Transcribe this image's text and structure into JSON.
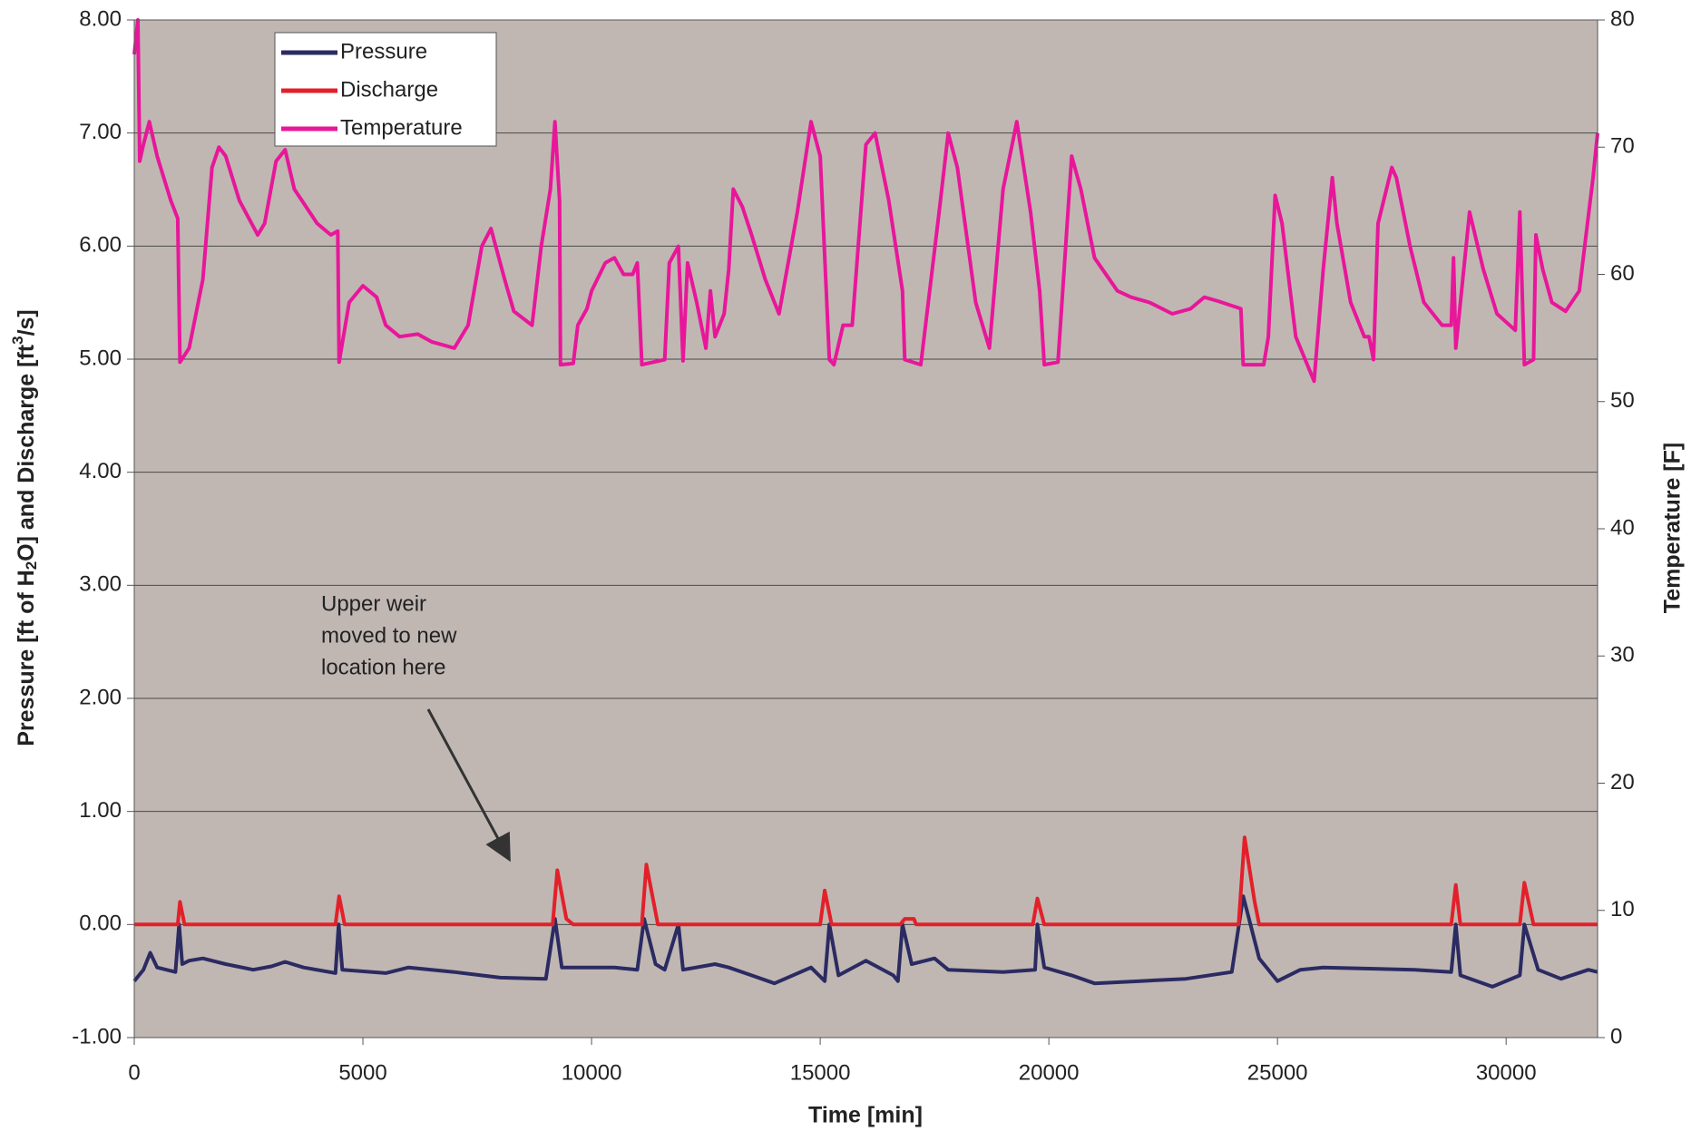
{
  "chart_data": {
    "type": "line",
    "xlabel": "Time [min]",
    "ylabel": [
      "Pressure [ft of H",
      "2",
      "O] and Discharge [ft",
      "3",
      "/s]"
    ],
    "y2label": "Temperature [F]",
    "annotation": [
      "Upper weir",
      "moved to new",
      "location here"
    ],
    "xlim": [
      0,
      32000
    ],
    "xticks": [
      0,
      5000,
      10000,
      15000,
      20000,
      25000,
      30000
    ],
    "ylim": [
      -1,
      8
    ],
    "yticks": [
      {
        "value": -1,
        "label": "-1.00"
      },
      {
        "value": 0,
        "label": "0.00"
      },
      {
        "value": 1,
        "label": "1.00"
      },
      {
        "value": 2,
        "label": "2.00"
      },
      {
        "value": 3,
        "label": "3.00"
      },
      {
        "value": 4,
        "label": "4.00"
      },
      {
        "value": 5,
        "label": "5.00"
      },
      {
        "value": 6,
        "label": "6.00"
      },
      {
        "value": 7,
        "label": "7.00"
      },
      {
        "value": 8,
        "label": "8.00"
      }
    ],
    "y2lim": [
      0,
      80
    ],
    "y2ticks": [
      0,
      10,
      20,
      30,
      40,
      50,
      60,
      70,
      80
    ],
    "grid": true,
    "legend": "upper left",
    "series": [
      {
        "name": "Pressure",
        "color": "#2b2b62",
        "x": [
          0,
          200,
          350,
          500,
          900,
          980,
          1050,
          1200,
          1500,
          2000,
          2600,
          3000,
          3300,
          3700,
          4400,
          4470,
          4550,
          5500,
          6000,
          7000,
          8000,
          9000,
          9200,
          9350,
          10500,
          11000,
          11150,
          11400,
          11600,
          11900,
          12000,
          12700,
          13000,
          13500,
          14000,
          14800,
          15100,
          15200,
          15400,
          16000,
          16600,
          16700,
          16800,
          17000,
          17500,
          17800,
          19000,
          19700,
          19750,
          19900,
          20500,
          21000,
          22000,
          23000,
          24000,
          24250,
          24600,
          25000,
          25500,
          26000,
          28000,
          28800,
          28900,
          29000,
          29700,
          30300,
          30400,
          30700,
          31200,
          31800,
          32000
        ],
        "values": [
          -0.5,
          -0.4,
          -0.25,
          -0.38,
          -0.42,
          0.0,
          -0.35,
          -0.32,
          -0.3,
          -0.35,
          -0.4,
          -0.37,
          -0.33,
          -0.38,
          -0.43,
          0.0,
          -0.4,
          -0.43,
          -0.38,
          -0.42,
          -0.47,
          -0.48,
          0.05,
          -0.38,
          -0.38,
          -0.4,
          0.05,
          -0.35,
          -0.4,
          0.0,
          -0.4,
          -0.35,
          -0.38,
          -0.45,
          -0.52,
          -0.38,
          -0.5,
          0.0,
          -0.45,
          -0.32,
          -0.45,
          -0.5,
          0.0,
          -0.35,
          -0.3,
          -0.4,
          -0.42,
          -0.4,
          0.0,
          -0.38,
          -0.45,
          -0.52,
          -0.5,
          -0.48,
          -0.42,
          0.25,
          -0.3,
          -0.5,
          -0.4,
          -0.38,
          -0.4,
          -0.42,
          0.0,
          -0.45,
          -0.55,
          -0.45,
          0.0,
          -0.4,
          -0.48,
          -0.4,
          -0.42
        ]
      },
      {
        "name": "Discharge",
        "color": "#e3202a",
        "x": [
          0,
          950,
          1000,
          1100,
          4400,
          4480,
          4600,
          9150,
          9250,
          9450,
          9600,
          11100,
          11200,
          11450,
          15000,
          15100,
          15250,
          16750,
          16850,
          17050,
          17100,
          19650,
          19750,
          19900,
          24150,
          24280,
          24500,
          24600,
          28800,
          28900,
          29000,
          30300,
          30400,
          30600,
          32000
        ],
        "values": [
          0,
          0,
          0.2,
          0,
          0,
          0.25,
          0,
          0,
          0.48,
          0.05,
          0,
          0,
          0.53,
          0,
          0,
          0.3,
          0,
          0,
          0.05,
          0.05,
          0,
          0,
          0.23,
          0,
          0,
          0.77,
          0.2,
          0,
          0,
          0.35,
          0,
          0,
          0.37,
          0,
          0
        ]
      },
      {
        "name": "Temperature",
        "color": "#e8179a",
        "axis": "y2",
        "x": [
          0,
          80,
          120,
          200,
          330,
          500,
          800,
          950,
          1000,
          1200,
          1500,
          1700,
          1850,
          2000,
          2300,
          2700,
          2850,
          3100,
          3300,
          3500,
          4000,
          4300,
          4450,
          4480,
          4700,
          5000,
          5300,
          5500,
          5800,
          6200,
          6500,
          7000,
          7300,
          7600,
          7800,
          8100,
          8300,
          8700,
          8900,
          9100,
          9200,
          9300,
          9320,
          9600,
          9700,
          9900,
          10000,
          10300,
          10500,
          10700,
          10900,
          11000,
          11100,
          11600,
          11700,
          11900,
          12000,
          12100,
          12300,
          12500,
          12600,
          12700,
          12900,
          13000,
          13100,
          13300,
          13500,
          13800,
          14100,
          14500,
          14800,
          15000,
          15200,
          15300,
          15500,
          15700,
          16000,
          16200,
          16500,
          16800,
          16850,
          17200,
          17600,
          17800,
          18000,
          18400,
          18700,
          19000,
          19300,
          19600,
          19800,
          19900,
          20200,
          20500,
          20700,
          21000,
          21500,
          21800,
          22200,
          22700,
          23100,
          23400,
          23700,
          24200,
          24250,
          24700,
          24800,
          24950,
          25100,
          25400,
          25800,
          26000,
          26200,
          26300,
          26600,
          26900,
          27000,
          27100,
          27200,
          27500,
          27600,
          27900,
          28200,
          28600,
          28800,
          28850,
          28900,
          29200,
          29500,
          29800,
          30200,
          30300,
          30400,
          30600,
          30650,
          30800,
          31000,
          31300,
          31600,
          31900,
          32000
        ],
        "values": [
          77.3,
          80,
          68.9,
          70.2,
          72,
          69.3,
          65.8,
          64.4,
          53.1,
          54.2,
          59.6,
          68.4,
          70,
          69.3,
          65.8,
          63.1,
          64,
          68.9,
          69.8,
          66.7,
          64,
          63.1,
          63.4,
          53.1,
          57.8,
          59.1,
          58.2,
          56,
          55.1,
          55.3,
          54.7,
          54.2,
          56,
          62.2,
          63.6,
          59.6,
          57.1,
          56,
          62.2,
          66.7,
          72,
          65.8,
          52.9,
          53,
          56,
          57.3,
          58.7,
          60.9,
          61.3,
          60,
          60,
          60.9,
          52.9,
          53.3,
          60.9,
          62.2,
          53.2,
          60.9,
          57.8,
          54.2,
          58.7,
          55.1,
          56.9,
          60.4,
          66.7,
          65.3,
          63.1,
          59.6,
          56.9,
          64.9,
          72,
          69.3,
          53.3,
          52.9,
          56,
          56,
          70.2,
          71.1,
          65.8,
          58.7,
          53.3,
          52.9,
          64.9,
          71.1,
          68.4,
          57.8,
          54.2,
          66.7,
          72,
          64.9,
          58.7,
          52.9,
          53.1,
          69.3,
          66.7,
          61.3,
          58.7,
          58.2,
          57.8,
          56.9,
          57.3,
          58.2,
          57.9,
          57.3,
          52.9,
          52.9,
          55.1,
          66.2,
          64,
          55.1,
          51.6,
          60.4,
          67.6,
          64,
          57.8,
          55.1,
          55.1,
          53.3,
          64,
          68.4,
          67.6,
          62.2,
          57.8,
          56,
          56,
          61.3,
          54.2,
          64.9,
          60.4,
          56.9,
          55.6,
          64.9,
          52.9,
          53.3,
          63.1,
          60.4,
          57.8,
          57.1,
          58.7,
          67.6,
          71.1
        ]
      }
    ]
  }
}
